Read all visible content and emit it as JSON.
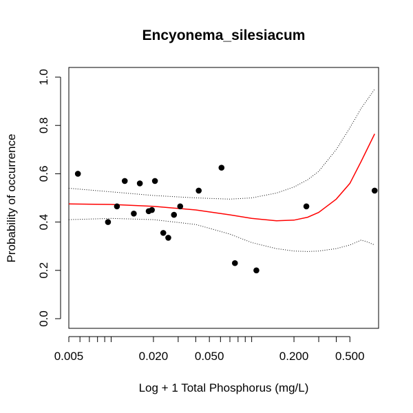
{
  "chart_data": {
    "type": "scatter",
    "title": "Encyonema_silesiacum",
    "xlabel": "Log + 1 Total Phosphorus (mg/L)",
    "ylabel": "Probability of occurrence",
    "x_scale": "log",
    "xlim": [
      0.005,
      0.8
    ],
    "ylim": [
      -0.04,
      1.04
    ],
    "x_ticks": [
      0.005,
      0.02,
      0.05,
      0.2,
      0.5
    ],
    "x_tick_labels": [
      "0.005",
      "0.020",
      "0.050",
      "0.200",
      "0.500"
    ],
    "y_ticks": [
      0.0,
      0.2,
      0.4,
      0.6,
      0.8,
      1.0
    ],
    "y_tick_labels": [
      "0.0",
      "0.2",
      "0.4",
      "0.6",
      "0.8",
      "1.0"
    ],
    "grid": false,
    "colors": {
      "points": "#000000",
      "fit": "#ff0000",
      "ci": "#000000"
    },
    "points": [
      {
        "x": 0.0058,
        "y": 0.6
      },
      {
        "x": 0.0095,
        "y": 0.4
      },
      {
        "x": 0.011,
        "y": 0.465
      },
      {
        "x": 0.0125,
        "y": 0.57
      },
      {
        "x": 0.0145,
        "y": 0.435
      },
      {
        "x": 0.016,
        "y": 0.56
      },
      {
        "x": 0.0185,
        "y": 0.445
      },
      {
        "x": 0.0195,
        "y": 0.45
      },
      {
        "x": 0.0205,
        "y": 0.57
      },
      {
        "x": 0.0235,
        "y": 0.355
      },
      {
        "x": 0.0255,
        "y": 0.335
      },
      {
        "x": 0.028,
        "y": 0.43
      },
      {
        "x": 0.031,
        "y": 0.465
      },
      {
        "x": 0.042,
        "y": 0.53
      },
      {
        "x": 0.061,
        "y": 0.625
      },
      {
        "x": 0.076,
        "y": 0.23
      },
      {
        "x": 0.108,
        "y": 0.2
      },
      {
        "x": 0.245,
        "y": 0.465
      },
      {
        "x": 0.75,
        "y": 0.53
      }
    ],
    "series": [
      {
        "style": "solid",
        "x": [
          0.005,
          0.01,
          0.02,
          0.04,
          0.07,
          0.1,
          0.15,
          0.2,
          0.25,
          0.3,
          0.4,
          0.5,
          0.6,
          0.75
        ],
        "y": [
          0.475,
          0.473,
          0.465,
          0.45,
          0.43,
          0.415,
          0.405,
          0.408,
          0.42,
          0.44,
          0.495,
          0.56,
          0.65,
          0.765
        ]
      },
      {
        "style": "dotted",
        "x": [
          0.005,
          0.01,
          0.02,
          0.04,
          0.07,
          0.1,
          0.15,
          0.2,
          0.25,
          0.3,
          0.4,
          0.5,
          0.6,
          0.75
        ],
        "y": [
          0.54,
          0.525,
          0.51,
          0.5,
          0.495,
          0.5,
          0.52,
          0.545,
          0.575,
          0.61,
          0.7,
          0.79,
          0.87,
          0.95
        ]
      },
      {
        "style": "dotted",
        "x": [
          0.005,
          0.01,
          0.02,
          0.04,
          0.07,
          0.1,
          0.15,
          0.2,
          0.25,
          0.3,
          0.4,
          0.5,
          0.6,
          0.65,
          0.75
        ],
        "y": [
          0.41,
          0.415,
          0.41,
          0.39,
          0.35,
          0.315,
          0.29,
          0.28,
          0.278,
          0.28,
          0.29,
          0.305,
          0.325,
          0.32,
          0.305
        ]
      }
    ]
  }
}
